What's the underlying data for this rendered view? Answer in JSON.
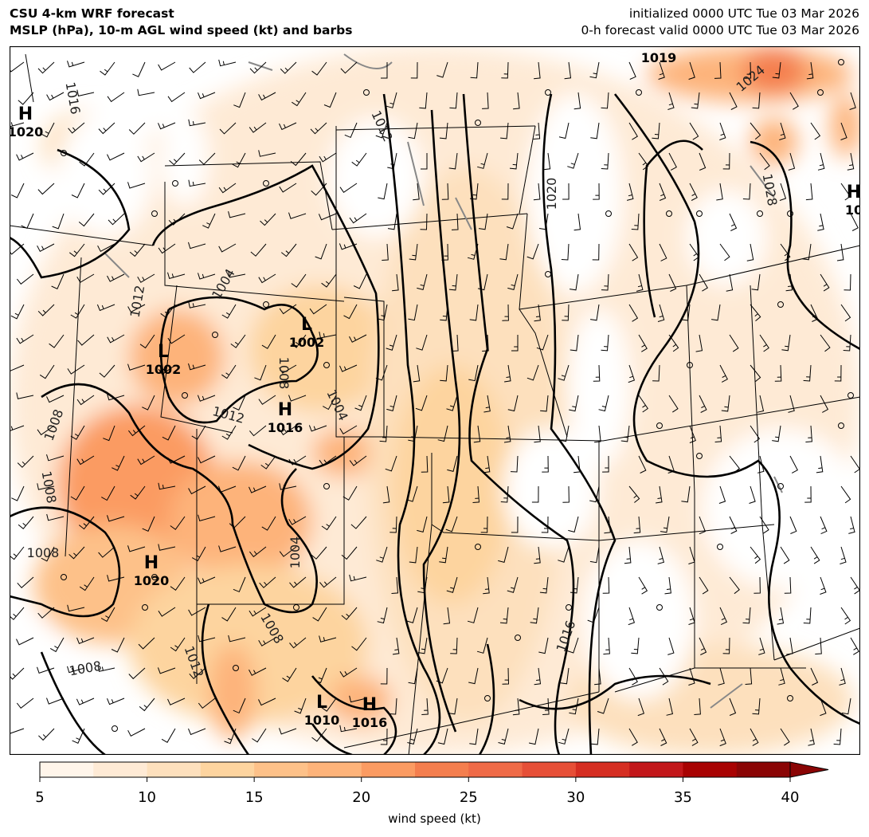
{
  "header": {
    "title_line1": "CSU 4-km WRF forecast",
    "title_line2": "MSLP (hPa), 10-m AGL wind speed (kt) and barbs",
    "init_line": "initialized 0000 UTC Tue 03 Mar 2026",
    "valid_line": "0-h forecast valid 0000 UTC Tue 03 Mar 2026"
  },
  "map": {
    "pressure_centers": [
      {
        "type": "H",
        "value": "1020"
      },
      {
        "type": "L",
        "value": "1002"
      },
      {
        "type": "L",
        "value": "1002"
      },
      {
        "type": "H",
        "value": "1016"
      },
      {
        "type": "H",
        "value": "1020"
      },
      {
        "type": "L",
        "value": "1010"
      },
      {
        "type": "H",
        "value": "1016"
      },
      {
        "type": "",
        "value": "1019"
      },
      {
        "type": "H",
        "value": "10"
      }
    ],
    "isobar_labels": [
      "1016",
      "1012",
      "1004",
      "1012",
      "1004",
      "1008",
      "1008",
      "1008",
      "1008",
      "1004",
      "1008",
      "1012",
      "1008",
      "1012",
      "1020",
      "1016",
      "1028",
      "1024"
    ],
    "barb_color": "#000000",
    "isobar_color": "#000000"
  },
  "colorbar": {
    "label": "wind speed (kt)",
    "ticks": [
      "5",
      "10",
      "15",
      "20",
      "25",
      "30",
      "35",
      "40"
    ],
    "range": [
      5,
      40
    ],
    "extend": "max",
    "colors": [
      "#fff5ea",
      "#feead5",
      "#fde0bd",
      "#fdd49f",
      "#fdc189",
      "#fdb37a",
      "#fb9b62",
      "#f47e4e",
      "#ef6a47",
      "#e64f37",
      "#d52e22",
      "#c2171a",
      "#a80202",
      "#8a0505"
    ]
  }
}
